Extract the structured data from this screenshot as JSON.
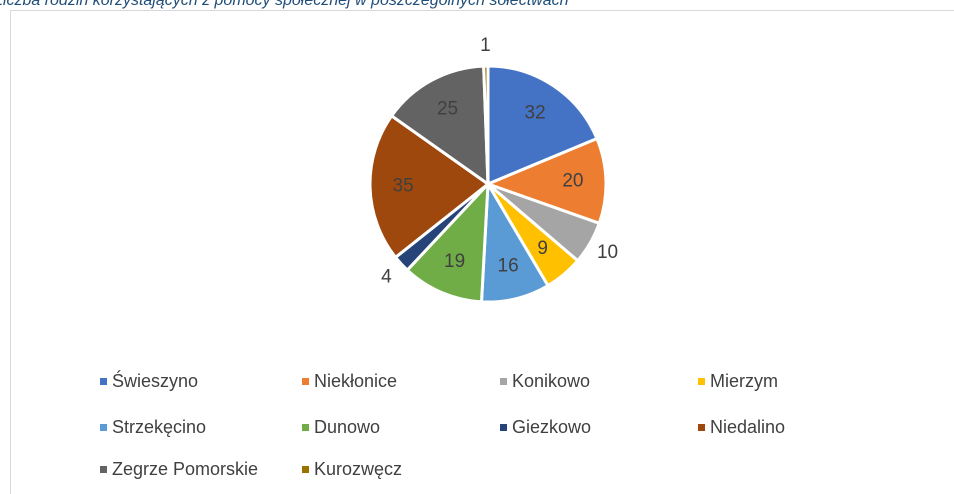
{
  "chart_data": {
    "type": "pie",
    "title": "Liczba rodzin korzystających z pomocy społecznej w poszczególnych sołectwach",
    "categories": [
      "Świeszyno",
      "Niekłonice",
      "Konikowo",
      "Mierzym",
      "Strzekęcino",
      "Dunowo",
      "Giezkowo",
      "Niedalino",
      "Zegrze Pomorskie",
      "Kurozwęcz"
    ],
    "values": [
      32,
      20,
      10,
      9,
      16,
      19,
      4,
      35,
      25,
      1
    ],
    "colors": [
      "#4472c4",
      "#ed7d31",
      "#a5a5a5",
      "#ffc000",
      "#5b9bd5",
      "#70ad47",
      "#264478",
      "#9e480e",
      "#636363",
      "#997300"
    ],
    "legend": "bottom"
  }
}
